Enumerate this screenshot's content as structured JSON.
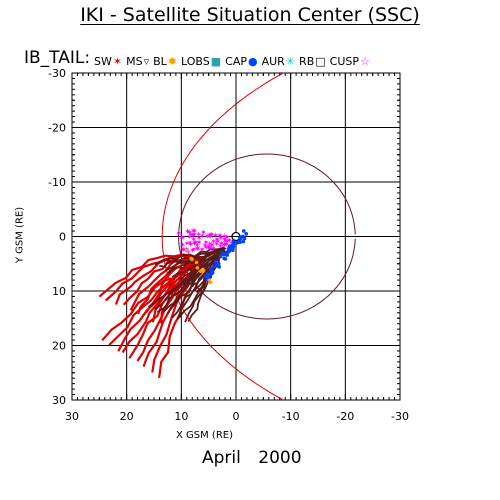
{
  "title": "IKI - Satellite Situation Center (SSC)",
  "satellite_label": "IB_TAIL:",
  "legend": [
    {
      "label": "SW",
      "symbol": "✶",
      "color": "#e00000",
      "icon": "asterisk-icon"
    },
    {
      "label": "MS",
      "symbol": "▿",
      "color": "#5a1a1a",
      "icon": "triangle-down-icon"
    },
    {
      "label": "BL",
      "symbol": "✹",
      "color": "#ff9c00",
      "icon": "star-burst-icon"
    },
    {
      "label": "LOBS",
      "symbol": "■",
      "color": "#2aa0b0",
      "icon": "square-icon"
    },
    {
      "label": "CAP",
      "symbol": "●",
      "color": "#0044ff",
      "icon": "dot-icon"
    },
    {
      "label": "AUR",
      "symbol": "✳",
      "color": "#00c8c8",
      "icon": "asterisk-icon"
    },
    {
      "label": "RB",
      "symbol": "□",
      "color": "#000000",
      "icon": "square-outline-icon"
    },
    {
      "label": "CUSP",
      "symbol": "☆",
      "color": "#ff00ff",
      "icon": "star-outline-icon"
    }
  ],
  "date": "April 2000",
  "chart_data": {
    "type": "scatter",
    "xlabel": "X GSM (RE)",
    "ylabel": "Y GSM (RE)",
    "xlim": [
      30,
      -30
    ],
    "ylim": [
      -30,
      30
    ],
    "x_ticks": [
      "30",
      "20",
      "10",
      "0",
      "-10",
      "-20",
      "-30"
    ],
    "y_ticks": [
      "-30",
      "-20",
      "-10",
      "0",
      "10",
      "20",
      "30"
    ],
    "grid": true,
    "boundaries": [
      {
        "name": "bow-shock",
        "color": "#e00000"
      },
      {
        "name": "magnetopause",
        "color": "#5a1a2a"
      }
    ],
    "series": [
      {
        "name": "SW",
        "color": "#e00000",
        "region": "x 10 to 26, y 3 to 23"
      },
      {
        "name": "MS",
        "color": "#5a1a1a",
        "region": "x 2 to 16, y 2 to 19"
      },
      {
        "name": "CUSP",
        "color": "#ff00ff",
        "region": "x 1 to 10, y -2 to 5"
      },
      {
        "name": "CAP",
        "color": "#0044ff",
        "region": "x -2 to 6, y -1 to 8"
      },
      {
        "name": "BL",
        "color": "#ff9c00",
        "region": "x 4 to 9, y 2 to 10"
      }
    ]
  }
}
